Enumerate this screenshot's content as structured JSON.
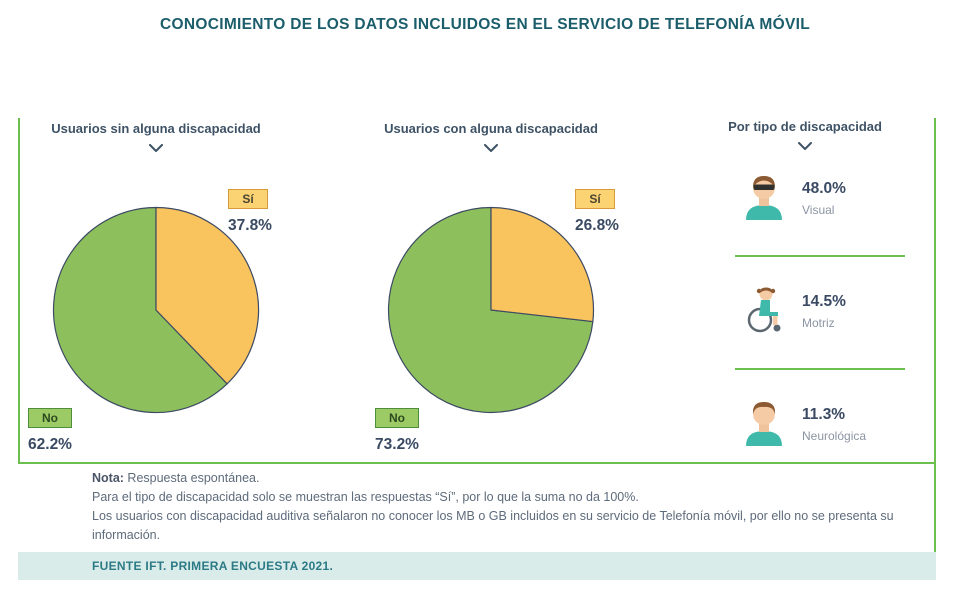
{
  "title": "CONOCIMIENTO DE LOS DATOS INCLUIDOS EN EL SERVICIO DE TELEFONÍA MÓVIL",
  "charts": [
    {
      "subtitle": "Usuarios sin alguna discapacidad",
      "yes_label": "Sí",
      "yes_value": "37.8%",
      "yes_pct": 37.8,
      "no_label": "No",
      "no_value": "62.2%",
      "no_pct": 62.2
    },
    {
      "subtitle": "Usuarios con alguna discapacidad",
      "yes_label": "Sí",
      "yes_value": "26.8%",
      "yes_pct": 26.8,
      "no_label": "No",
      "no_value": "73.2%",
      "no_pct": 73.2
    }
  ],
  "side_panel": {
    "title": "Por tipo de discapacidad",
    "items": [
      {
        "value": "48.0%",
        "label": "Visual",
        "icon": "person-sunglasses-icon"
      },
      {
        "value": "14.5%",
        "label": "Motriz",
        "icon": "person-wheelchair-icon"
      },
      {
        "value": "11.3%",
        "label": "Neurológica",
        "icon": "person-icon"
      }
    ]
  },
  "notes": {
    "bold_prefix": "Nota:",
    "line1": " Respuesta espontánea.",
    "line2": "Para el tipo de discapacidad solo se muestran las respuestas “Sí”, por lo que la suma no da 100%.",
    "line3": "Los usuarios con discapacidad auditiva señalaron no conocer los MB o GB incluidos en su servicio de Telefonía móvil, por ello no se presenta su información."
  },
  "footer": "FUENTE IFT. PRIMERA ENCUESTA 2021.",
  "colors": {
    "yes": "#F9C35D",
    "no": "#8DC05C",
    "pie_stroke": "#3C4A63",
    "accent_green": "#6CBE4E",
    "title": "#1B5D6B",
    "footer_bg": "#DAECEA",
    "footer_text": "#2B7A85"
  },
  "chart_data": [
    {
      "type": "pie",
      "title": "Usuarios sin alguna discapacidad",
      "labels": [
        "Sí",
        "No"
      ],
      "values": [
        37.8,
        62.2
      ],
      "colors": [
        "#F9C35D",
        "#8DC05C"
      ]
    },
    {
      "type": "pie",
      "title": "Usuarios con alguna discapacidad",
      "labels": [
        "Sí",
        "No"
      ],
      "values": [
        26.8,
        73.2
      ],
      "colors": [
        "#F9C35D",
        "#8DC05C"
      ]
    },
    {
      "type": "bar",
      "title": "Por tipo de discapacidad",
      "categories": [
        "Visual",
        "Motriz",
        "Neurológica"
      ],
      "values": [
        48.0,
        14.5,
        11.3
      ],
      "note": "Solo respuestas Sí, la suma no da 100%"
    }
  ]
}
